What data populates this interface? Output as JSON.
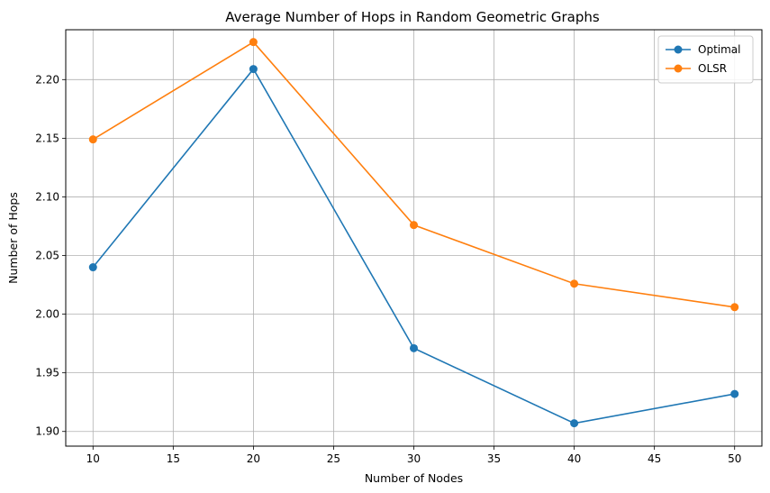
{
  "chart_data": {
    "type": "line",
    "title": "Average Number of Hops in Random Geometric Graphs",
    "xlabel": "Number of Nodes",
    "ylabel": "Number of Hops",
    "x": [
      10,
      20,
      30,
      40,
      50
    ],
    "xlim": [
      8.3,
      51.7
    ],
    "ylim": [
      1.8875,
      2.2425
    ],
    "xticks": [
      10,
      15,
      20,
      25,
      30,
      35,
      40,
      45,
      50
    ],
    "yticks": [
      1.9,
      1.95,
      2.0,
      2.05,
      2.1,
      2.15,
      2.2
    ],
    "ytick_labels": [
      "1.90",
      "1.95",
      "2.00",
      "2.05",
      "2.10",
      "2.15",
      "2.20"
    ],
    "grid": true,
    "legend_position": "top-right",
    "series": [
      {
        "name": "Optimal",
        "color": "#1f77b4",
        "marker": "circle",
        "values": [
          2.04,
          2.209,
          1.971,
          1.907,
          1.932
        ]
      },
      {
        "name": "OLSR",
        "color": "#ff7f0e",
        "marker": "circle",
        "values": [
          2.149,
          2.232,
          2.076,
          2.026,
          2.006
        ]
      }
    ]
  }
}
